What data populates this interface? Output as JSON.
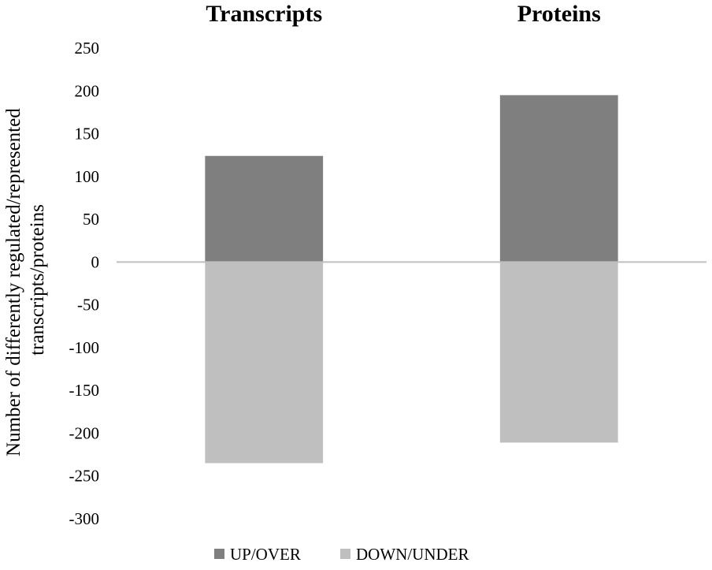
{
  "chart_data": {
    "type": "bar",
    "stacked": true,
    "categories": [
      "Transcripts",
      "Proteins"
    ],
    "series": [
      {
        "name": "UP/OVER",
        "values": [
          124,
          195
        ],
        "color": "#7f7f7f"
      },
      {
        "name": "DOWN/UNDER",
        "values": [
          -235,
          -211
        ],
        "color": "#bfbfbf"
      }
    ],
    "ylabel_lines": [
      "Number of differently regulated/represented",
      "transcripts/proteins"
    ],
    "ylim": [
      -300,
      250
    ],
    "yticks": [
      "250",
      "200",
      "150",
      "100",
      "50",
      "0",
      "-50",
      "-100",
      "-150",
      "-200",
      "-250",
      "-300"
    ],
    "category_labels_position": "top",
    "zero_line_color": "#bfbfbf",
    "grid": false,
    "legend_position": "bottom"
  }
}
